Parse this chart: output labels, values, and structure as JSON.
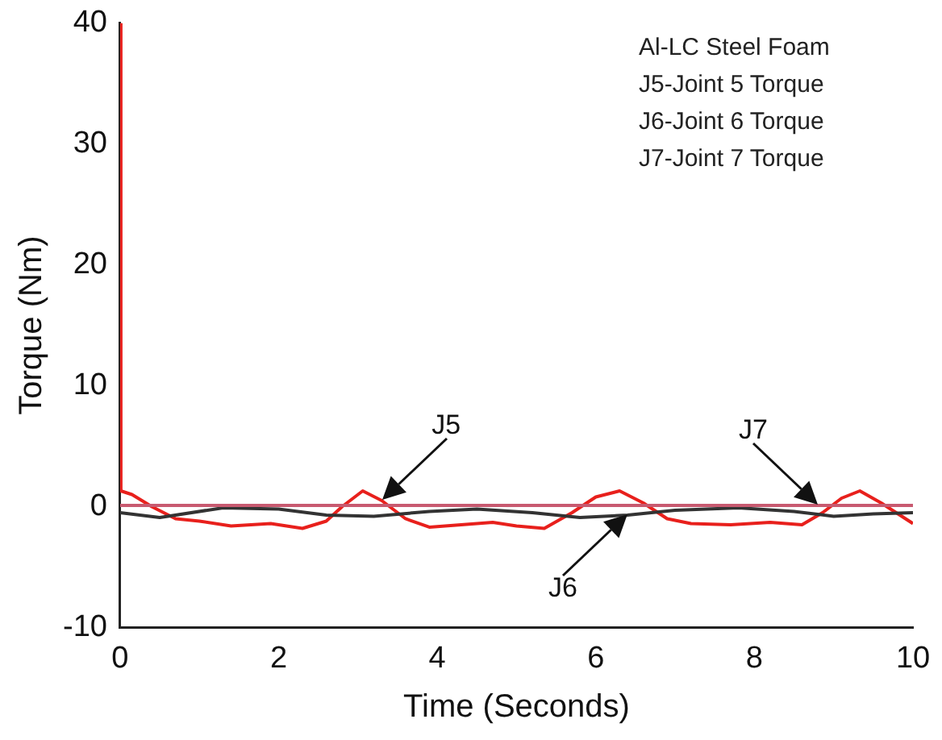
{
  "chart_data": {
    "type": "line",
    "xlabel": "Time (Seconds)",
    "ylabel": "Torque (Nm)",
    "xlim": [
      0,
      10
    ],
    "xticks": [
      0,
      2,
      4,
      6,
      8,
      10
    ],
    "ylim": [
      -10,
      40
    ],
    "yticks": [
      -10,
      0,
      10,
      20,
      30,
      40
    ],
    "grid": false,
    "legend": false,
    "marker": "none",
    "line_style": "solid",
    "series": [
      {
        "color": "#c85a70",
        "x": [
          0,
          10
        ],
        "values": [
          0.1,
          0.1
        ]
      },
      {
        "color": "#333333",
        "x": [
          0,
          0.5,
          1.3,
          2.0,
          2.6,
          3.2,
          3.9,
          4.5,
          5.2,
          5.8,
          6.4,
          7.0,
          7.8,
          8.5,
          9.0,
          9.5,
          10
        ],
        "values": [
          -0.5,
          -0.9,
          -0.1,
          -0.2,
          -0.7,
          -0.8,
          -0.4,
          -0.2,
          -0.5,
          -0.9,
          -0.7,
          -0.3,
          -0.1,
          -0.4,
          -0.8,
          -0.6,
          -0.5
        ]
      },
      {
        "color": "#e8201c",
        "x": [
          0,
          0.01,
          0.15,
          0.4,
          0.7,
          1.0,
          1.4,
          1.9,
          2.3,
          2.6,
          2.8,
          3.06,
          3.3,
          3.6,
          3.9,
          4.3,
          4.7,
          5.0,
          5.35,
          5.7,
          6.0,
          6.3,
          6.6,
          6.9,
          7.2,
          7.7,
          8.2,
          8.6,
          8.86,
          9.1,
          9.33,
          9.6,
          10
        ],
        "values": [
          40,
          1.3,
          1.0,
          0,
          -1.0,
          -1.2,
          -1.6,
          -1.4,
          -1.8,
          -1.2,
          0,
          1.3,
          0.5,
          -1.0,
          -1.7,
          -1.5,
          -1.3,
          -1.6,
          -1.8,
          -0.5,
          0.8,
          1.3,
          0.3,
          -1.0,
          -1.4,
          -1.5,
          -1.3,
          -1.5,
          -0.5,
          0.7,
          1.3,
          0.3,
          -1.4
        ]
      }
    ],
    "annotations": [
      "Al-LC Steel Foam",
      "J5-Joint 5 Torque",
      "J6-Joint 6 Torque",
      "J7-Joint 7 Torque",
      {
        "text": "J5",
        "x": 3.3,
        "y": 0.5
      },
      {
        "text": "J6",
        "x": 6.4,
        "y": -0.7
      },
      {
        "text": "J7",
        "x": 8.8,
        "y": 0.1
      }
    ]
  }
}
